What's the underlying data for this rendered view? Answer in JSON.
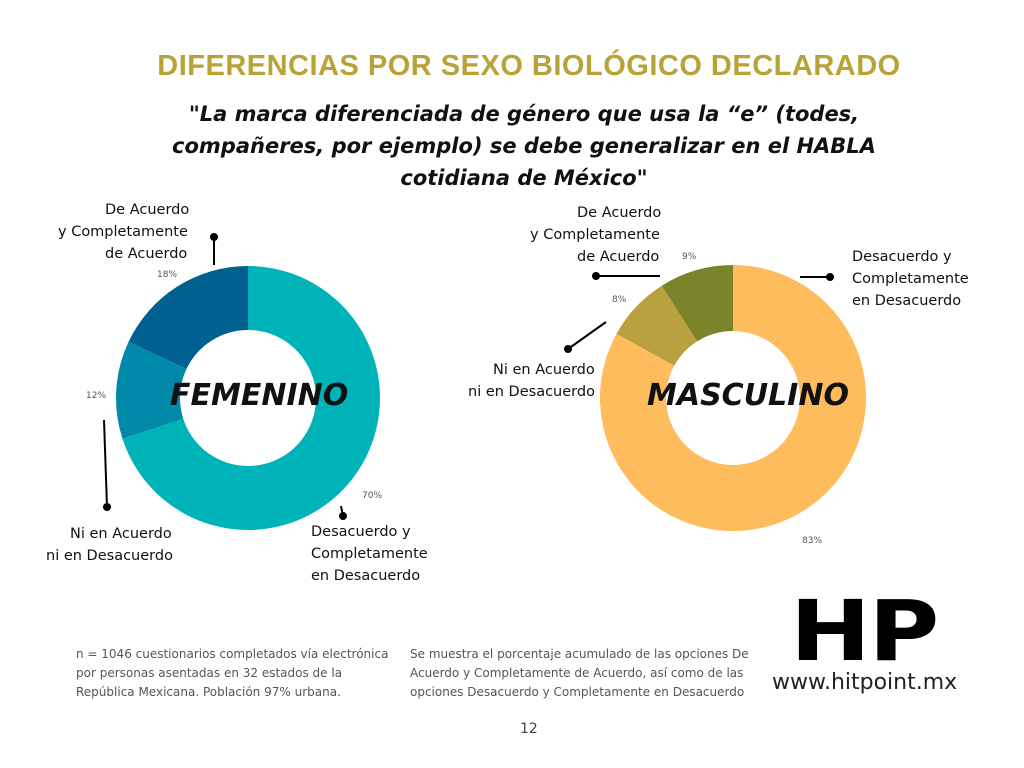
{
  "title": "DIFERENCIAS POR SEXO BIOLÓGICO DECLARADO",
  "subtitle": "\"La marca diferenciada de género que usa la “e” (todes, compañeres, por ejemplo) se debe generalizar en el HABLA cotidiana de México\"",
  "chart_data": [
    {
      "type": "pie",
      "title": "FEMENINO",
      "categories": [
        "Desacuerdo y Completamente en Desacuerdo",
        "Ni en Acuerdo ni en Desacuerdo",
        "De Acuerdo y Completamente de Acuerdo"
      ],
      "values": [
        70,
        12,
        18
      ],
      "labels": [
        "70%",
        "12%",
        "18%"
      ],
      "colors": [
        "#00b3b9",
        "#0089a9",
        "#00608f"
      ]
    },
    {
      "type": "pie",
      "title": "MASCULINO",
      "categories": [
        "Desacuerdo y Completamente en Desacuerdo",
        "Ni en Acuerdo ni en Desacuerdo",
        "De Acuerdo y Completamente de Acuerdo"
      ],
      "values": [
        83,
        8,
        9
      ],
      "labels": [
        "83%",
        "8%",
        "9%"
      ],
      "colors": [
        "#ffbc5c",
        "#b9a13f",
        "#7b842b"
      ]
    }
  ],
  "labels": {
    "fem_acuerdo_1": "De Acuerdo",
    "fem_acuerdo_2": "y Completamente",
    "fem_acuerdo_3": "de Acuerdo",
    "fem_ni_1": "Ni en Acuerdo",
    "fem_ni_2": "ni en Desacuerdo",
    "fem_des_1": "Desacuerdo y",
    "fem_des_2": "Completamente",
    "fem_des_3": "en Desacuerdo",
    "mas_acuerdo_1": "De Acuerdo",
    "mas_acuerdo_2": "y Completamente",
    "mas_acuerdo_3": "de Acuerdo",
    "mas_ni_1": "Ni en Acuerdo",
    "mas_ni_2": "ni en Desacuerdo",
    "mas_des_1": "Desacuerdo y",
    "mas_des_2": "Completamente",
    "mas_des_3": "en Desacuerdo"
  },
  "notes": {
    "left": "n = 1046 cuestionarios completados vía electrónica por personas asentadas en 32 estados de la República Mexicana. Población 97% urbana.",
    "right": "Se muestra el porcentaje acumulado de las opciones De Acuerdo y Completamente de Acuerdo, así como de las opciones Desacuerdo y Completamente en Desacuerdo"
  },
  "logo": {
    "mark": "HP",
    "url": "www.hitpoint.mx"
  },
  "page_number": "12"
}
